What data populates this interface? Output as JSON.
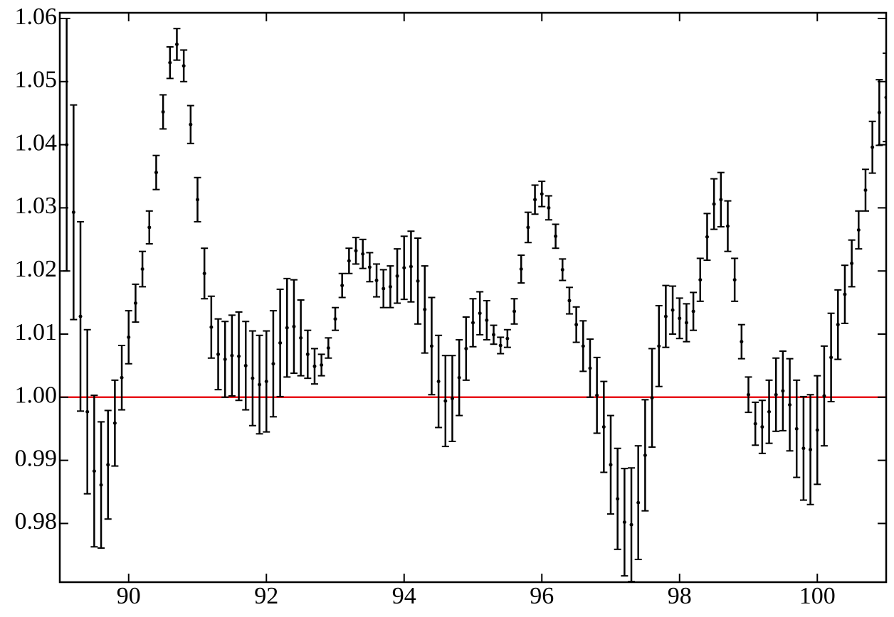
{
  "chart_data": {
    "type": "errorbar",
    "color": "#000000",
    "x": [
      89.1,
      89.2,
      89.3,
      89.4,
      89.5,
      89.6,
      89.7,
      89.8,
      89.9,
      90.0,
      90.1,
      90.2,
      90.3,
      90.4,
      90.5,
      90.6,
      90.7,
      90.8,
      90.9,
      91.0,
      91.1,
      91.2,
      91.3,
      91.4,
      91.5,
      91.6,
      91.7,
      91.8,
      91.9,
      92.0,
      92.1,
      92.2,
      92.3,
      92.4,
      92.5,
      92.6,
      92.7,
      92.8,
      92.9,
      93.0,
      93.1,
      93.2,
      93.3,
      93.4,
      93.5,
      93.6,
      93.7,
      93.8,
      93.9,
      94.0,
      94.1,
      94.2,
      94.3,
      94.4,
      94.5,
      94.6,
      94.7,
      94.8,
      94.9,
      95.0,
      95.1,
      95.2,
      95.3,
      95.4,
      95.5,
      95.6,
      95.7,
      95.8,
      95.9,
      96.0,
      96.1,
      96.2,
      96.3,
      96.4,
      96.5,
      96.6,
      96.7,
      96.8,
      96.9,
      97.0,
      97.1,
      97.2,
      97.3,
      97.4,
      97.5,
      97.6,
      97.7,
      97.8,
      97.9,
      98.0,
      98.1,
      98.2,
      98.3,
      98.4,
      98.5,
      98.6,
      98.7,
      98.8,
      98.9,
      99.0,
      99.1,
      99.2,
      99.3,
      99.4,
      99.5,
      99.6,
      99.7,
      99.8,
      99.9,
      100.0,
      100.1,
      100.2,
      100.3,
      100.4,
      100.5,
      100.6,
      100.7,
      100.8,
      100.9,
      101.0
    ],
    "values": [
      1.04,
      1.0293,
      1.0128,
      0.9977,
      0.9883,
      0.9861,
      0.9893,
      0.9959,
      1.0031,
      1.0095,
      1.0149,
      1.0203,
      1.0269,
      1.0356,
      1.0452,
      1.053,
      1.0559,
      1.0525,
      1.0432,
      1.0313,
      1.0196,
      1.0111,
      1.0068,
      1.006,
      1.0066,
      1.0065,
      1.005,
      1.003,
      1.002,
      1.0025,
      1.0053,
      1.0086,
      1.011,
      1.0112,
      1.0094,
      1.0068,
      1.0049,
      1.0051,
      1.0078,
      1.0124,
      1.0177,
      1.0216,
      1.0232,
      1.0227,
      1.0206,
      1.0185,
      1.0172,
      1.0175,
      1.0192,
      1.0205,
      1.0207,
      1.0184,
      1.0139,
      1.0081,
      1.0025,
      0.9994,
      0.9998,
      1.0031,
      1.0077,
      1.0118,
      1.0133,
      1.0122,
      1.0099,
      1.0082,
      1.0093,
      1.0136,
      1.0203,
      1.0269,
      1.0313,
      1.0322,
      1.03,
      1.0255,
      1.0202,
      1.0153,
      1.0115,
      1.0081,
      1.0046,
      1.0003,
      0.9953,
      0.9893,
      0.9839,
      0.9802,
      0.9798,
      0.9833,
      0.9908,
      0.9999,
      1.0081,
      1.0128,
      1.0138,
      1.0125,
      1.0118,
      1.0136,
      1.0186,
      1.0254,
      1.0306,
      1.0313,
      1.0271,
      1.0186,
      1.0088,
      1.0004,
      0.9958,
      0.9953,
      0.9977,
      1.0004,
      1.001,
      0.9988,
      0.995,
      0.9919,
      0.9917,
      0.9948,
      1.0002,
      1.0063,
      1.0115,
      1.0163,
      1.0212,
      1.0265,
      1.0328,
      1.0396,
      1.0451,
      1.0475
    ],
    "errors": [
      0.02,
      0.017,
      0.015,
      0.013,
      0.012,
      0.01,
      0.0086,
      0.0068,
      0.0051,
      0.0042,
      0.003,
      0.0028,
      0.0026,
      0.0027,
      0.0027,
      0.0025,
      0.0025,
      0.0025,
      0.003,
      0.0035,
      0.004,
      0.0049,
      0.0056,
      0.006,
      0.0064,
      0.007,
      0.007,
      0.0075,
      0.0078,
      0.008,
      0.0084,
      0.0085,
      0.0078,
      0.0074,
      0.006,
      0.0038,
      0.0028,
      0.0017,
      0.0016,
      0.0018,
      0.0019,
      0.002,
      0.0021,
      0.0023,
      0.0023,
      0.0026,
      0.003,
      0.0033,
      0.0043,
      0.005,
      0.0056,
      0.0068,
      0.0069,
      0.0077,
      0.0073,
      0.0072,
      0.0068,
      0.006,
      0.005,
      0.0038,
      0.0034,
      0.0031,
      0.0015,
      0.0013,
      0.0014,
      0.002,
      0.0022,
      0.0024,
      0.0023,
      0.002,
      0.0019,
      0.0019,
      0.0017,
      0.0021,
      0.0028,
      0.004,
      0.0046,
      0.006,
      0.0072,
      0.0078,
      0.008,
      0.0085,
      0.009,
      0.009,
      0.0088,
      0.0078,
      0.0064,
      0.0049,
      0.0038,
      0.0032,
      0.003,
      0.003,
      0.0034,
      0.0037,
      0.004,
      0.0043,
      0.004,
      0.0034,
      0.0027,
      0.0028,
      0.0034,
      0.0042,
      0.005,
      0.0058,
      0.0063,
      0.0073,
      0.0077,
      0.0082,
      0.0087,
      0.0086,
      0.0079,
      0.007,
      0.0055,
      0.0046,
      0.0037,
      0.003,
      0.0033,
      0.0041,
      0.0052,
      0.007
    ],
    "reference_line": {
      "value": 1,
      "color": "#e8161b"
    },
    "xlim": [
      89,
      101
    ],
    "ylim": [
      0.9707,
      1.0609
    ],
    "xticks": [
      90,
      92,
      94,
      96,
      98,
      100
    ],
    "yticks": [
      0.98,
      0.99,
      {
        "value": 1.0,
        "label": "1.00"
      },
      1.01,
      1.02,
      1.03,
      1.04,
      1.05,
      1.06
    ]
  }
}
